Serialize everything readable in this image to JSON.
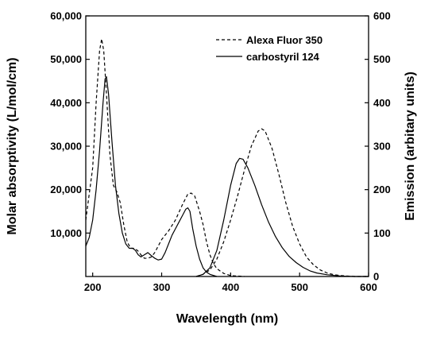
{
  "chart_data": {
    "type": "line",
    "title": "",
    "xlabel": "Wavelength (nm)",
    "ylabel": "Molar absorptivity (L/mol/cm)",
    "y2label": "Emission (arbitary units)",
    "xlim": [
      190,
      600
    ],
    "ylim": [
      0,
      60000
    ],
    "y2lim": [
      0,
      600
    ],
    "xticks": [
      "200",
      "300",
      "400",
      "500",
      "600"
    ],
    "yticks": [
      "10,000",
      "20,000",
      "30,000",
      "40,000",
      "50,000",
      "60,000"
    ],
    "y2ticks": [
      "0",
      "100",
      "200",
      "300",
      "400",
      "500",
      "600"
    ],
    "grid": false,
    "legend_position": "top-right",
    "series": [
      {
        "name": "Alexa Fluor 350",
        "style": "dashed",
        "color": "#000000",
        "segments": [
          {
            "axis": "left",
            "points": [
              [
                190,
                13000
              ],
              [
                200,
                25000
              ],
              [
                205,
                40000
              ],
              [
                210,
                52000
              ],
              [
                213,
                54700
              ],
              [
                216,
                52000
              ],
              [
                220,
                42000
              ],
              [
                225,
                28000
              ],
              [
                230,
                21000
              ],
              [
                235,
                19500
              ],
              [
                240,
                17000
              ],
              [
                245,
                12000
              ],
              [
                250,
                8000
              ],
              [
                255,
                6500
              ],
              [
                260,
                6500
              ],
              [
                265,
                6000
              ],
              [
                270,
                5000
              ],
              [
                275,
                4200
              ],
              [
                280,
                4200
              ],
              [
                285,
                4500
              ],
              [
                290,
                5500
              ],
              [
                295,
                7000
              ],
              [
                300,
                8500
              ],
              [
                310,
                10500
              ],
              [
                320,
                13000
              ],
              [
                330,
                16500
              ],
              [
                338,
                19000
              ],
              [
                343,
                19200
              ],
              [
                348,
                18500
              ],
              [
                355,
                15000
              ],
              [
                360,
                12000
              ],
              [
                365,
                8000
              ],
              [
                370,
                5000
              ],
              [
                375,
                3000
              ],
              [
                380,
                1800
              ],
              [
                390,
                700
              ],
              [
                400,
                200
              ],
              [
                420,
                0
              ]
            ]
          },
          {
            "axis": "right",
            "points": [
              [
                350,
                0
              ],
              [
                360,
                5
              ],
              [
                370,
                15
              ],
              [
                380,
                40
              ],
              [
                390,
                80
              ],
              [
                400,
                130
              ],
              [
                410,
                185
              ],
              [
                420,
                245
              ],
              [
                430,
                300
              ],
              [
                440,
                335
              ],
              [
                445,
                340
              ],
              [
                450,
                335
              ],
              [
                460,
                295
              ],
              [
                470,
                235
              ],
              [
                480,
                170
              ],
              [
                490,
                115
              ],
              [
                500,
                75
              ],
              [
                510,
                45
              ],
              [
                520,
                27
              ],
              [
                530,
                15
              ],
              [
                540,
                8
              ],
              [
                550,
                4
              ],
              [
                560,
                2
              ],
              [
                580,
                0
              ],
              [
                600,
                0
              ]
            ]
          }
        ]
      },
      {
        "name": "carbostyril 124",
        "style": "solid",
        "color": "#000000",
        "segments": [
          {
            "axis": "left",
            "points": [
              [
                190,
                7000
              ],
              [
                195,
                9000
              ],
              [
                200,
                13000
              ],
              [
                205,
                20000
              ],
              [
                210,
                29000
              ],
              [
                215,
                40000
              ],
              [
                218,
                45500
              ],
              [
                220,
                46000
              ],
              [
                223,
                42000
              ],
              [
                228,
                31000
              ],
              [
                233,
                21000
              ],
              [
                238,
                14500
              ],
              [
                243,
                10000
              ],
              [
                248,
                7500
              ],
              [
                253,
                6500
              ],
              [
                258,
                6500
              ],
              [
                262,
                6000
              ],
              [
                266,
                5000
              ],
              [
                270,
                4500
              ],
              [
                275,
                5000
              ],
              [
                280,
                5500
              ],
              [
                285,
                4800
              ],
              [
                290,
                4200
              ],
              [
                295,
                3800
              ],
              [
                300,
                4000
              ],
              [
                305,
                5500
              ],
              [
                310,
                7500
              ],
              [
                315,
                9500
              ],
              [
                320,
                11000
              ],
              [
                325,
                12500
              ],
              [
                330,
                14000
              ],
              [
                335,
                15500
              ],
              [
                338,
                15800
              ],
              [
                341,
                15000
              ],
              [
                345,
                11000
              ],
              [
                350,
                7000
              ],
              [
                355,
                4000
              ],
              [
                360,
                2000
              ],
              [
                365,
                1000
              ],
              [
                370,
                500
              ],
              [
                380,
                0
              ]
            ]
          },
          {
            "axis": "right",
            "points": [
              [
                350,
                0
              ],
              [
                360,
                5
              ],
              [
                370,
                20
              ],
              [
                380,
                60
              ],
              [
                390,
                130
              ],
              [
                400,
                210
              ],
              [
                408,
                260
              ],
              [
                413,
                272
              ],
              [
                418,
                270
              ],
              [
                425,
                250
              ],
              [
                435,
                210
              ],
              [
                445,
                165
              ],
              [
                455,
                125
              ],
              [
                465,
                92
              ],
              [
                475,
                66
              ],
              [
                485,
                46
              ],
              [
                495,
                32
              ],
              [
                505,
                21
              ],
              [
                515,
                13
              ],
              [
                525,
                8
              ],
              [
                540,
                4
              ],
              [
                560,
                1
              ],
              [
                580,
                0
              ],
              [
                600,
                0
              ]
            ]
          }
        ]
      }
    ]
  }
}
